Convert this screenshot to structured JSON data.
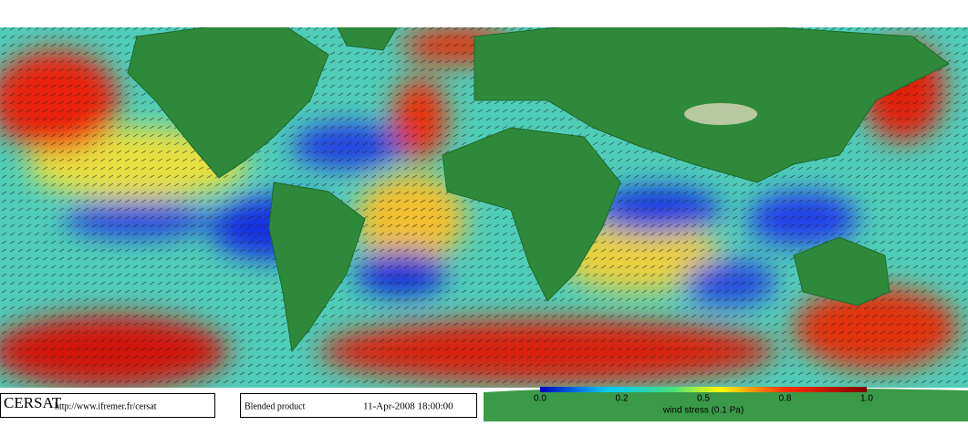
{
  "logo": {
    "name": "CERSAT",
    "url": "http://www.ifremer.fr/cersat"
  },
  "product": {
    "label": "Blended product",
    "date": "11-Apr-2008 18:00:00"
  },
  "colorbar": {
    "ticks": [
      "0.0",
      "0.2",
      "0.5",
      "0.8",
      "1.0"
    ],
    "label": "wind stress (0.1 Pa)"
  }
}
